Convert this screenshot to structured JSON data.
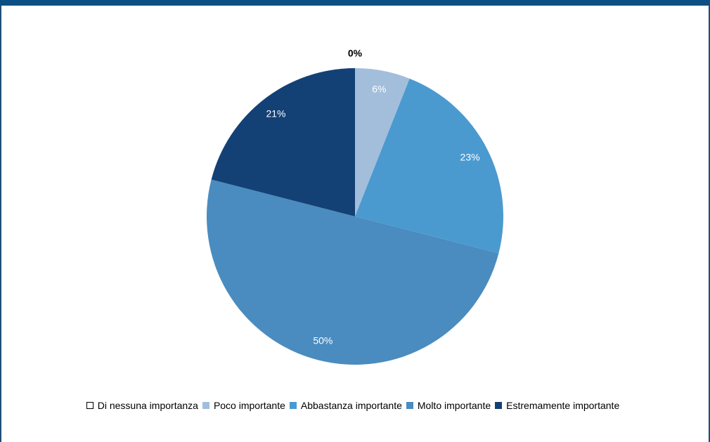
{
  "chart_data": {
    "type": "pie",
    "title": "",
    "categories": [
      "Di nessuna importanza",
      "Poco importante",
      "Abbastanza importante",
      "Molto importante",
      "Estremamente importante"
    ],
    "values": [
      0,
      6,
      23,
      50,
      21
    ],
    "labels": [
      "0%",
      "6%",
      "23%",
      "50%",
      "21%"
    ],
    "colors": [
      "#ffffff",
      "#a3bedb",
      "#4a9ad0",
      "#4a8cbf",
      "#134176"
    ],
    "start_angle": "12 o'clock, clockwise",
    "legend_position": "bottom"
  }
}
